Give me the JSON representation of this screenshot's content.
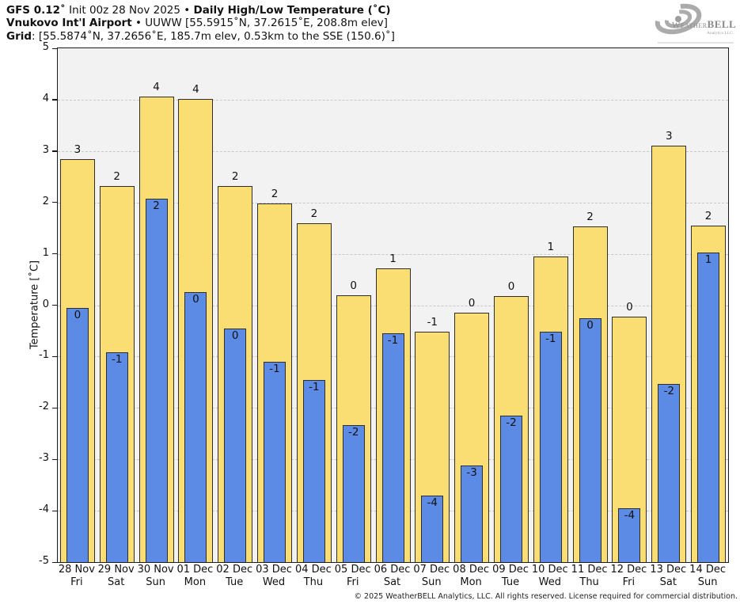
{
  "header": {
    "line1": {
      "bold1": "GFS 0.12˚",
      "text1": " Init 00z 28 Nov 2025 • ",
      "bold2": "Daily High/Low Temperature (˚C)"
    },
    "line2": {
      "bold1": "Vnukovo Int'l Airport",
      "text1": " • UUWW [55.5915˚N, 37.2615˚E, 208.8m elev]"
    },
    "line3": {
      "bold1": "Grid",
      "text1": ": [55.5874˚N, 37.2656˚E, 185.7m elev, 0.53km to the SSE (150.6)˚]"
    }
  },
  "logo": {
    "name1": "Weather",
    "name2": "BELL",
    "tagline": "Analytics LLC"
  },
  "chart_data": {
    "type": "bar",
    "title": "GFS 0.12˚ Init 00z 28 Nov 2025 • Daily High/Low Temperature (˚C) — Vnukovo Int'l Airport UUWW",
    "xlabel": "",
    "ylabel": "Temperature [˚C]",
    "ylim": [
      -5,
      5
    ],
    "yticks": [
      5,
      4,
      3,
      2,
      1,
      0,
      -1,
      -2,
      -3,
      -4,
      -5
    ],
    "grid": true,
    "plot_bg": "#f2f2f2",
    "bar_border": "#2e2e2e",
    "categories": [
      "28 Nov",
      "29 Nov",
      "30 Nov",
      "01 Dec",
      "02 Dec",
      "03 Dec",
      "04 Dec",
      "05 Dec",
      "06 Dec",
      "07 Dec",
      "08 Dec",
      "09 Dec",
      "10 Dec",
      "11 Dec",
      "12 Dec",
      "13 Dec",
      "14 Dec"
    ],
    "weekdays": [
      "Fri",
      "Sat",
      "Sun",
      "Mon",
      "Tue",
      "Wed",
      "Thu",
      "Fri",
      "Sat",
      "Sun",
      "Mon",
      "Tue",
      "Wed",
      "Thu",
      "Fri",
      "Sat",
      "Sun"
    ],
    "series": [
      {
        "name": "Daily High",
        "color": "#fadd73",
        "values": [
          2.85,
          2.32,
          4.06,
          4.02,
          2.32,
          1.98,
          1.6,
          0.2,
          0.72,
          -0.52,
          -0.15,
          0.18,
          0.95,
          1.53,
          -0.22,
          3.1,
          1.55
        ],
        "labels": [
          3,
          2,
          4,
          4,
          2,
          2,
          2,
          0,
          1,
          -1,
          0,
          0,
          1,
          2,
          0,
          3,
          2
        ]
      },
      {
        "name": "Daily Low",
        "color": "#5b8be4",
        "values": [
          -0.05,
          -0.92,
          2.08,
          0.25,
          -0.46,
          -1.1,
          -1.45,
          -2.33,
          -0.55,
          -3.7,
          -3.12,
          -2.15,
          -0.52,
          -0.25,
          -3.95,
          -1.53,
          1.03
        ],
        "labels": [
          0,
          -1,
          2,
          0,
          0,
          -1,
          -1,
          -2,
          -1,
          -4,
          -3,
          -2,
          -1,
          0,
          -4,
          -2,
          1
        ]
      }
    ]
  },
  "footer": {
    "copyright": "© 2025 WeatherBELL Analytics, LLC. All rights reserved. License required for commercial distribution."
  }
}
